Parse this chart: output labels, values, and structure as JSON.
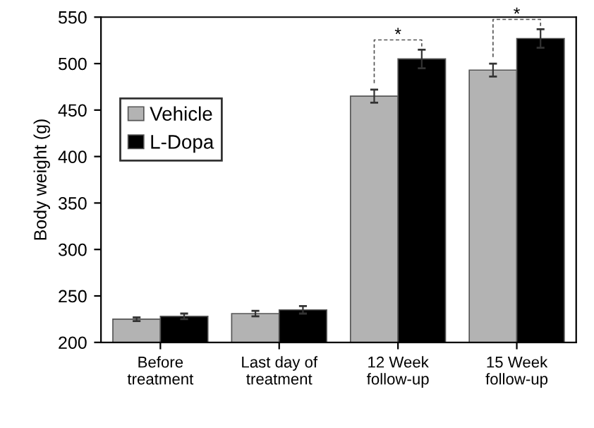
{
  "chart_data": {
    "type": "bar",
    "ylabel": "Body weight (g)",
    "categories": [
      "Before\ntreatment",
      "Last day of\ntreatment",
      "12 Week\nfollow-up",
      "15 Week\nfollow-up"
    ],
    "series": [
      {
        "name": "Vehicle",
        "color": "#b3b3b3",
        "values": [
          225,
          231,
          465,
          493
        ],
        "errors": [
          2,
          3,
          7,
          7
        ]
      },
      {
        "name": "L-Dopa",
        "color": "#000000",
        "values": [
          228,
          235,
          505,
          527
        ],
        "errors": [
          3,
          4,
          10,
          10
        ]
      }
    ],
    "ylim": [
      200,
      550
    ],
    "yticks": [
      200,
      250,
      300,
      350,
      400,
      450,
      500,
      550
    ],
    "grid": false,
    "legend": "top left",
    "annotations": [
      "*",
      "*"
    ]
  }
}
